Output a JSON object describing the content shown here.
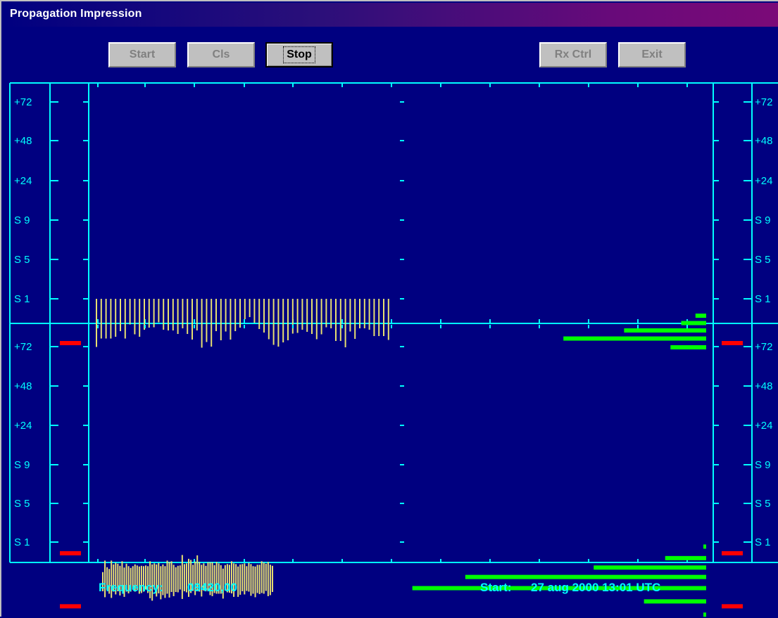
{
  "window": {
    "title": "Propagation Impression"
  },
  "toolbar": {
    "start_label": "Start",
    "cls_label": "Cls",
    "stop_label": "Stop",
    "rxctrl_label": "Rx Ctrl",
    "exit_label": "Exit"
  },
  "scale_labels": [
    "+72",
    "+48",
    "+24",
    "S 9",
    "S 5",
    "S 1"
  ],
  "status": {
    "frequency_label": "Frequency:",
    "frequency_value": "09420,00",
    "start_label": "Start:",
    "start_value": "27 aug 2000  13:01 UTC"
  },
  "colors": {
    "background": "#000080",
    "grid": "#00ffff",
    "trace": "#e8e070",
    "histogram": "#00ff00",
    "marker": "#ff0000",
    "text": "#00ffff"
  },
  "chart_data": [
    {
      "type": "bar",
      "panel": "top",
      "scale_levels": [
        "+72",
        "+48",
        "+24",
        "S 9",
        "S 5",
        "S 1"
      ],
      "signal_samples": [
        13.7,
        11.3,
        11.3,
        11.3,
        10.8,
        9.2,
        11.3,
        7.3,
        10.1,
        10.8,
        8.8,
        8.2,
        8.1,
        6.7,
        8.8,
        9.0,
        9.0,
        10.0,
        8.4,
        10.0,
        11.6,
        9.0,
        13.9,
        12.3,
        13.6,
        9.2,
        11.8,
        9.3,
        11.6,
        9.2,
        8.2,
        5.8,
        5.2,
        6.8,
        8.6,
        9.6,
        11.5,
        13.1,
        13.6,
        12.4,
        11.8,
        9.9,
        9.7,
        8.8,
        9.4,
        10.0,
        11.5,
        10.1,
        8.1,
        8.4,
        12.0,
        12.0,
        13.8,
        9.3,
        11.4,
        8.4,
        8.4,
        8.8,
        10.6,
        10.6,
        10.6,
        11.7
      ],
      "signal_low": 0,
      "markers": [
        12.6
      ],
      "histogram": [
        {
          "level": 13.8,
          "count": 1
        },
        {
          "level": 11.3,
          "count": 4
        },
        {
          "level": 9.0,
          "count": 2.3
        },
        {
          "level": 6.9,
          "count": 0.7
        },
        {
          "level": 4.8,
          "count": 0.3
        }
      ]
    },
    {
      "type": "bar",
      "panel": "bottom",
      "scale_levels": [
        "+72",
        "+48",
        "+24",
        "S 9",
        "S 5",
        "S 1"
      ],
      "signal_samples": [
        [
          14.1,
          8.6
        ],
        [
          15.8,
          5.3
        ],
        [
          13.7,
          7.2
        ],
        [
          14.8,
          7.7
        ],
        [
          16.0,
          5.3
        ],
        [
          14.2,
          6.4
        ],
        [
          15.0,
          5.9
        ],
        [
          14.1,
          6.2
        ],
        [
          15.3,
          6.8
        ],
        [
          14.0,
          5.5
        ],
        [
          15.7,
          7.3
        ],
        [
          14.2,
          6.2
        ],
        [
          14.7,
          6.9
        ],
        [
          14.2,
          7.4
        ],
        [
          13.6,
          6.9
        ],
        [
          14.2,
          6.4
        ],
        [
          13.8,
          6.7
        ],
        [
          14.8,
          7.0
        ],
        [
          14.6,
          6.8
        ],
        [
          14.2,
          6.9
        ],
        [
          13.6,
          6.7
        ],
        [
          14.6,
          6.9
        ],
        [
          16.1,
          5.5
        ],
        [
          16.8,
          6.4
        ],
        [
          13.6,
          6.1
        ],
        [
          15.6,
          6.4
        ],
        [
          14.7,
          6.0
        ],
        [
          16.4,
          6.9
        ],
        [
          15.2,
          6.4
        ],
        [
          16.0,
          6.9
        ],
        [
          14.8,
          5.3
        ],
        [
          15.9,
          5.7
        ],
        [
          14.3,
          5.5
        ],
        [
          15.5,
          6.5
        ],
        [
          14.3,
          7.2
        ],
        [
          14.4,
          6.8
        ],
        [
          13.6,
          6.7
        ],
        [
          16.3,
          3.7
        ],
        [
          14.1,
          6.3
        ],
        [
          14.4,
          6.1
        ],
        [
          15.7,
          4.8
        ],
        [
          14.6,
          5.1
        ],
        [
          14.0,
          6.5
        ],
        [
          15.2,
          5.6
        ],
        [
          13.7,
          3.8
        ],
        [
          14.2,
          5.7
        ],
        [
          15.6,
          6.5
        ],
        [
          13.9,
          6.1
        ],
        [
          14.1,
          6.8
        ],
        [
          14.1,
          5.8
        ],
        [
          15.2,
          5.8
        ],
        [
          15.5,
          5.8
        ],
        [
          14.6,
          6.6
        ],
        [
          14.8,
          5.7
        ],
        [
          14.8,
          6.1
        ],
        [
          14.8,
          6.6
        ],
        [
          16.2,
          7.6
        ],
        [
          13.9,
          6.6
        ],
        [
          14.4,
          6.3
        ],
        [
          14.5,
          6.5
        ],
        [
          14.7,
          5.5
        ],
        [
          15.7,
          6.1
        ],
        [
          13.6,
          6.3
        ],
        [
          15.7,
          7.0
        ],
        [
          15.1,
          6.4
        ],
        [
          14.1,
          6.3
        ],
        [
          15.0,
          6.1
        ],
        [
          14.0,
          6.9
        ],
        [
          14.2,
          6.0
        ],
        [
          15.4,
          6.3
        ],
        [
          14.8,
          6.9
        ],
        [
          15.8,
          7.0
        ],
        [
          14.6,
          6.5
        ],
        [
          14.9,
          6.5
        ],
        [
          14.6,
          5.5
        ],
        [
          14.8,
          5.9
        ],
        [
          14.0,
          6.2
        ],
        [
          15.5,
          5.7
        ],
        [
          15.2,
          6.5
        ],
        [
          14.3,
          6.8
        ]
      ],
      "markers": [
        18.4,
        3.2
      ],
      "histogram": [
        {
          "level": 20.8,
          "count": 0.2
        },
        {
          "level": 17.0,
          "count": 4.7
        },
        {
          "level": 13.2,
          "count": 22.2
        },
        {
          "level": 10.0,
          "count": 18.2
        },
        {
          "level": 7.3,
          "count": 8.5
        },
        {
          "level": 4.6,
          "count": 3.1
        },
        {
          "level": 1.3,
          "count": 0.1
        }
      ]
    }
  ]
}
